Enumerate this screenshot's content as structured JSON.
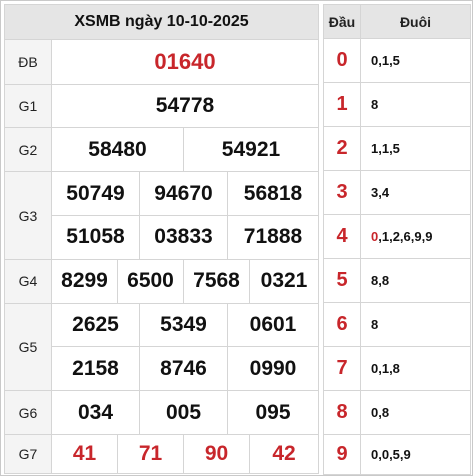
{
  "header": {
    "title": "XSMB ngày 10-10-2025"
  },
  "results": {
    "db": {
      "label": "ĐB",
      "values": [
        "01640"
      ]
    },
    "g1": {
      "label": "G1",
      "values": [
        "54778"
      ]
    },
    "g2": {
      "label": "G2",
      "values": [
        "58480",
        "54921"
      ]
    },
    "g3": {
      "label": "G3",
      "values": [
        "50749",
        "94670",
        "56818",
        "51058",
        "03833",
        "71888"
      ]
    },
    "g4": {
      "label": "G4",
      "values": [
        "8299",
        "6500",
        "7568",
        "0321"
      ]
    },
    "g5": {
      "label": "G5",
      "values": [
        "2625",
        "5349",
        "0601",
        "2158",
        "8746",
        "0990"
      ]
    },
    "g6": {
      "label": "G6",
      "values": [
        "034",
        "005",
        "095"
      ]
    },
    "g7": {
      "label": "G7",
      "values": [
        "41",
        "71",
        "90",
        "42"
      ]
    }
  },
  "loto": {
    "head_label": "Đầu",
    "tail_label": "Đuôi",
    "rows": [
      {
        "head": "0",
        "tail": "0,1,5"
      },
      {
        "head": "1",
        "tail": "8"
      },
      {
        "head": "2",
        "tail": "1,1,5"
      },
      {
        "head": "3",
        "tail": "3,4"
      },
      {
        "head": "4",
        "tail_hl": "0",
        "tail": ",1,2,6,9,9"
      },
      {
        "head": "5",
        "tail": "8,8"
      },
      {
        "head": "6",
        "tail": "8"
      },
      {
        "head": "7",
        "tail": "0,1,8"
      },
      {
        "head": "8",
        "tail": "0,8"
      },
      {
        "head": "9",
        "tail": "0,0,5,9"
      }
    ]
  },
  "colors": {
    "accent_red": "#c8262b",
    "header_bg": "#e5e5e5",
    "label_bg": "#f4f4f4"
  }
}
